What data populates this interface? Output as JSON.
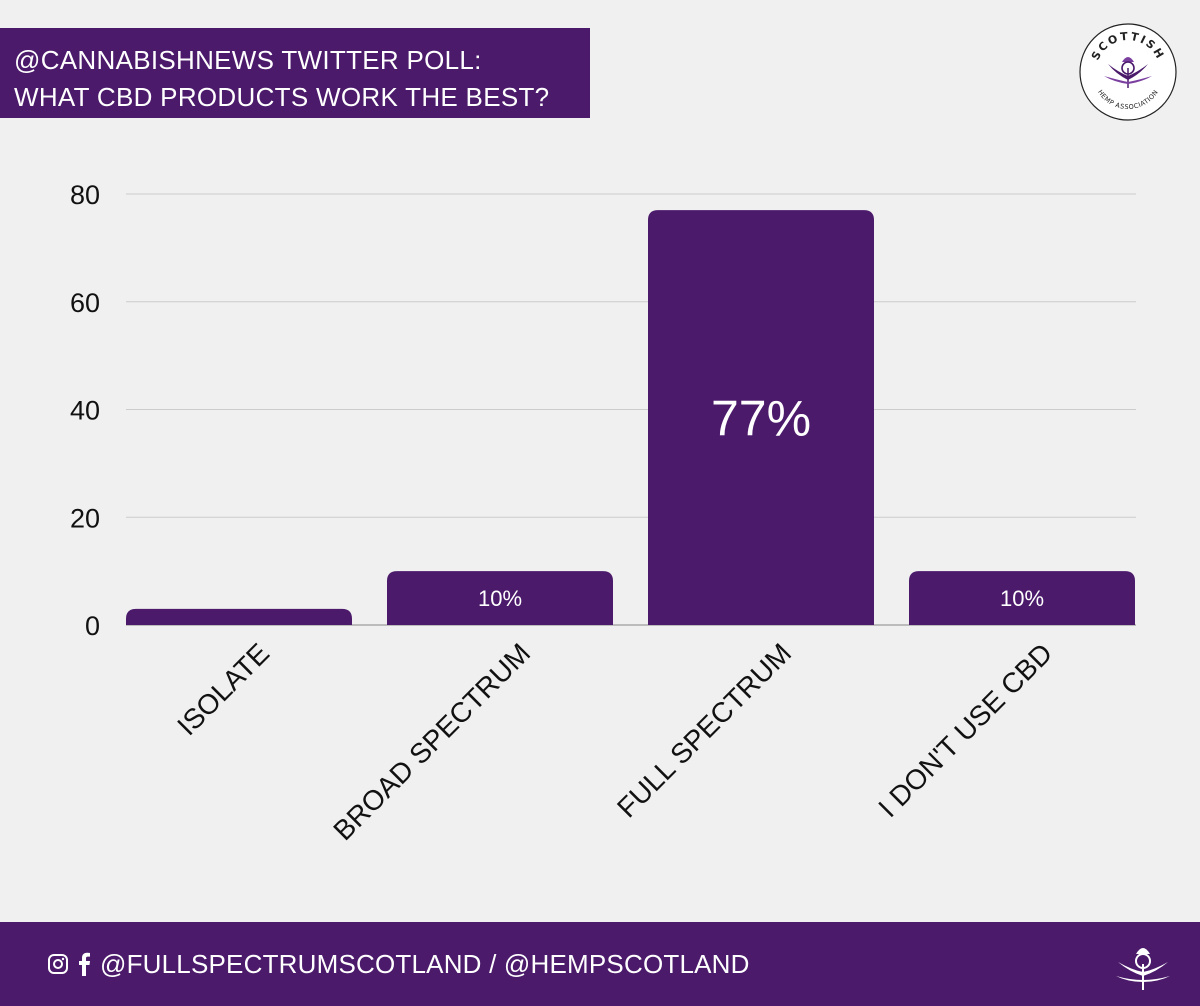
{
  "header": {
    "title_line1": "@CANNABISHNEWS TWITTER POLL:",
    "title_line2": "WHAT CBD PRODUCTS WORK THE BEST?"
  },
  "logo": {
    "top_text": "SCOTTISH",
    "bottom_text": "HEMP ASSOCIATION",
    "icon": "thistle-icon"
  },
  "footer": {
    "icons": [
      "instagram-icon",
      "facebook-icon"
    ],
    "handles": "@FULLSPECTRUMSCOTLAND / @HEMPSCOTLAND",
    "logo_icon": "thistle-icon"
  },
  "colors": {
    "brand": "#4b1a6b",
    "background": "#f0f0f0",
    "grid": "#cccccc",
    "text": "#111111"
  },
  "chart_data": {
    "type": "bar",
    "categories": [
      "ISOLATE",
      "BROAD SPECTRUM",
      "FULL SPECTRUM",
      "I DON'T USE CBD"
    ],
    "values": [
      3,
      10,
      77,
      10
    ],
    "data_labels": [
      "",
      "10%",
      "77%",
      "10%"
    ],
    "title": "",
    "xlabel": "",
    "ylabel": "",
    "ylim": [
      0,
      80
    ],
    "yticks": [
      "0",
      "20",
      "40",
      "60",
      "80"
    ],
    "grid": true,
    "legend": "none"
  }
}
